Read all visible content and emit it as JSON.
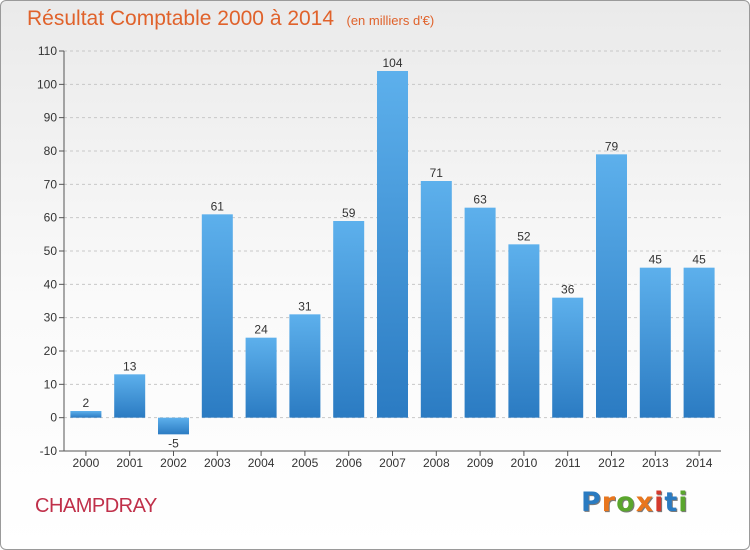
{
  "header": {
    "title": "Résultat Comptable 2000 à 2014",
    "unit": "(en milliers d'€)"
  },
  "footer": {
    "town": "CHAMPDRAY",
    "logo_text": "Proxiti",
    "logo_colors": [
      "#2a7bc1",
      "#e8761e",
      "#5aa62d",
      "#e8761e",
      "#d43a2e",
      "#2a7bc1",
      "#5aa62d"
    ]
  },
  "chart_data": {
    "type": "bar",
    "title": "Résultat Comptable 2000 à 2014",
    "xlabel": "",
    "ylabel": "",
    "categories": [
      "2000",
      "2001",
      "2002",
      "2003",
      "2004",
      "2005",
      "2006",
      "2007",
      "2008",
      "2009",
      "2010",
      "2011",
      "2012",
      "2013",
      "2014"
    ],
    "values": [
      2,
      13,
      -5,
      61,
      24,
      31,
      59,
      104,
      71,
      63,
      52,
      36,
      79,
      45,
      45
    ],
    "ylim": [
      -10,
      110
    ],
    "yticks": [
      -10,
      0,
      10,
      20,
      30,
      40,
      50,
      60,
      70,
      80,
      90,
      100,
      110
    ],
    "grid": "horizontal dashed",
    "bar_color": "#3e93d8",
    "bar_color_light": "#5db0ec",
    "bar_color_dark": "#2b7bc2"
  }
}
